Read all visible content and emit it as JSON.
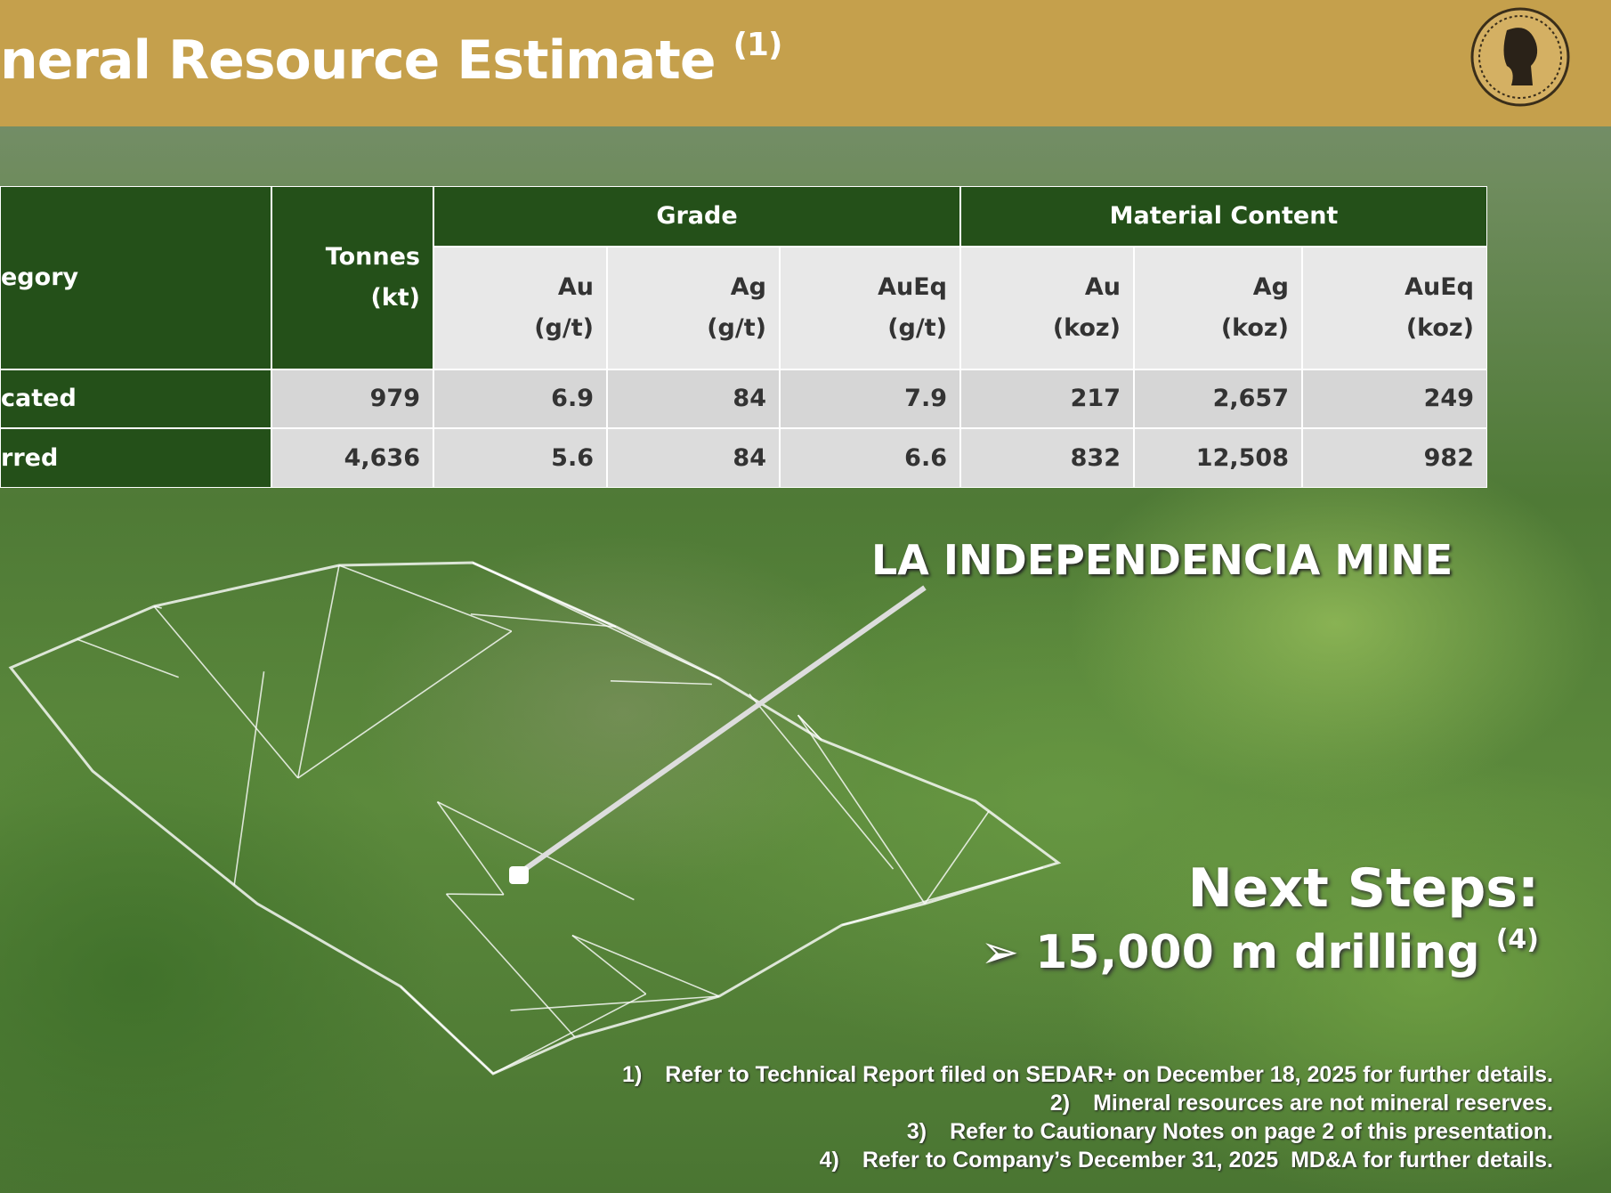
{
  "header": {
    "title": "neral Resource Estimate",
    "title_note": "(1)"
  },
  "table": {
    "group_headers": [
      "Grade",
      "Material Content"
    ],
    "columns": [
      {
        "lines": [
          "egory"
        ]
      },
      {
        "lines": [
          "Tonnes",
          "(kt)"
        ]
      },
      {
        "lines": [
          "Au",
          "(g/t)"
        ]
      },
      {
        "lines": [
          "Ag",
          "(g/t)"
        ]
      },
      {
        "lines": [
          "AuEq",
          "(g/t)"
        ]
      },
      {
        "lines": [
          "Au",
          "(koz)"
        ]
      },
      {
        "lines": [
          "Ag",
          "(koz)"
        ]
      },
      {
        "lines": [
          "AuEq",
          "(koz)"
        ]
      }
    ],
    "rows": [
      [
        "cated",
        "979",
        "6.9",
        "84",
        "7.9",
        "217",
        "2,657",
        "249"
      ],
      [
        "rred",
        "4,636",
        "5.6",
        "84",
        "6.6",
        "832",
        "12,508",
        "982"
      ]
    ]
  },
  "map_label": "LA INDEPENDENCIA MINE",
  "next_steps": {
    "title": "Next Steps:",
    "bullet": "15,000 m drilling",
    "bullet_note": "(4)"
  },
  "footnotes": [
    {
      "num": "1)",
      "text": "Refer to Technical Report filed on SEDAR+ on December 18, 2025 for further details."
    },
    {
      "num": "2)",
      "text": "Mineral resources are not mineral reserves."
    },
    {
      "num": "3)",
      "text": "Refer to Cautionary Notes on page 2 of this presentation."
    },
    {
      "num": "4)",
      "text": "Refer to Company’s December 31, 2025  MD&A for further details."
    }
  ]
}
